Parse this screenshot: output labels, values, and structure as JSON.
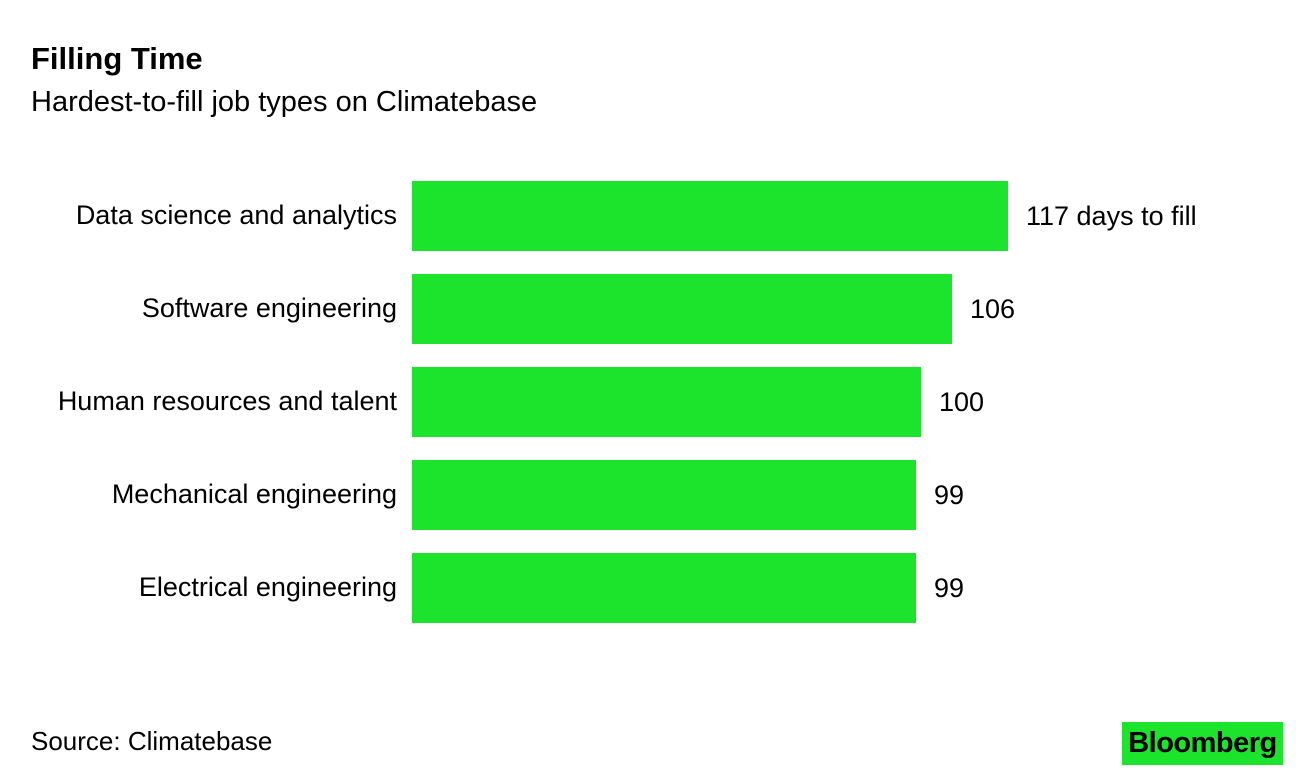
{
  "header": {
    "title": "Filling Time",
    "subtitle": "Hardest-to-fill job types on Climatebase"
  },
  "chart_data": {
    "type": "bar",
    "orientation": "horizontal",
    "title": "Filling Time",
    "subtitle": "Hardest-to-fill job types on Climatebase",
    "categories": [
      "Data science and analytics",
      "Software engineering",
      "Human resources and talent",
      "Mechanical engineering",
      "Electrical engineering"
    ],
    "values": [
      117,
      106,
      100,
      99,
      99
    ],
    "value_labels": [
      "117 days to fill",
      "106",
      "100",
      "99",
      "99"
    ],
    "unit": "days to fill",
    "xlim": [
      0,
      117
    ],
    "xmax": 117,
    "grid": false,
    "legend": false,
    "bar_color": "#1CE32C",
    "label_color": "#000000",
    "background_color": "#FFFFFF"
  },
  "footer": {
    "source": "Source: Climatebase",
    "brand": "Bloomberg",
    "brand_bg": "#1CE32C",
    "brand_text_color": "#000000"
  }
}
